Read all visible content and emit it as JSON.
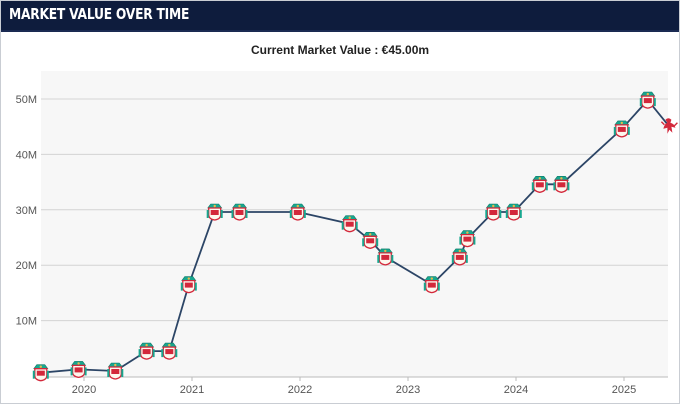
{
  "header": {
    "title": "MARKET VALUE OVER TIME"
  },
  "summary": {
    "label": "Current Market Value :",
    "value": "€45.00m"
  },
  "colors": {
    "header_bg": "#0e1c3d",
    "line": "#2c4566",
    "plot_bg": "#f7f7f7",
    "grid": "#d4d4d4",
    "marker_red": "#d3283b",
    "marker_teal": "#17a78f",
    "marker_gold": "#e8b94a"
  },
  "chart_data": {
    "type": "line",
    "title": "",
    "xlabel": "",
    "ylabel": "",
    "ylim": [
      0,
      55
    ],
    "y_ticks": [
      {
        "value": 10,
        "label": "10M"
      },
      {
        "value": 20,
        "label": "20M"
      },
      {
        "value": 30,
        "label": "30M"
      },
      {
        "value": 40,
        "label": "40M"
      },
      {
        "value": 50,
        "label": "50M"
      }
    ],
    "x_ticks": [
      "2020",
      "2021",
      "2022",
      "2023",
      "2024",
      "2025"
    ],
    "x_range": [
      2019.6,
      2025.42
    ],
    "grid": true,
    "marker_icon": "club-crest-icon",
    "current_marker_icon": "liver-bird-icon",
    "series": [
      {
        "points": [
          {
            "x": 2019.6,
            "y": 0.6
          },
          {
            "x": 2019.95,
            "y": 1.2
          },
          {
            "x": 2020.29,
            "y": 0.9
          },
          {
            "x": 2020.58,
            "y": 4.5
          },
          {
            "x": 2020.79,
            "y": 4.5
          },
          {
            "x": 2020.97,
            "y": 16.5
          },
          {
            "x": 2021.21,
            "y": 29.6
          },
          {
            "x": 2021.44,
            "y": 29.6
          },
          {
            "x": 2021.98,
            "y": 29.6
          },
          {
            "x": 2022.46,
            "y": 27.5
          },
          {
            "x": 2022.65,
            "y": 24.5
          },
          {
            "x": 2022.79,
            "y": 21.5
          },
          {
            "x": 2023.22,
            "y": 16.5
          },
          {
            "x": 2023.48,
            "y": 21.5
          },
          {
            "x": 2023.55,
            "y": 24.8
          },
          {
            "x": 2023.79,
            "y": 29.6
          },
          {
            "x": 2023.98,
            "y": 29.6
          },
          {
            "x": 2024.22,
            "y": 34.6
          },
          {
            "x": 2024.42,
            "y": 34.6
          },
          {
            "x": 2024.98,
            "y": 44.6
          },
          {
            "x": 2025.22,
            "y": 49.8
          },
          {
            "x": 2025.42,
            "y": 45.0
          }
        ]
      }
    ]
  }
}
